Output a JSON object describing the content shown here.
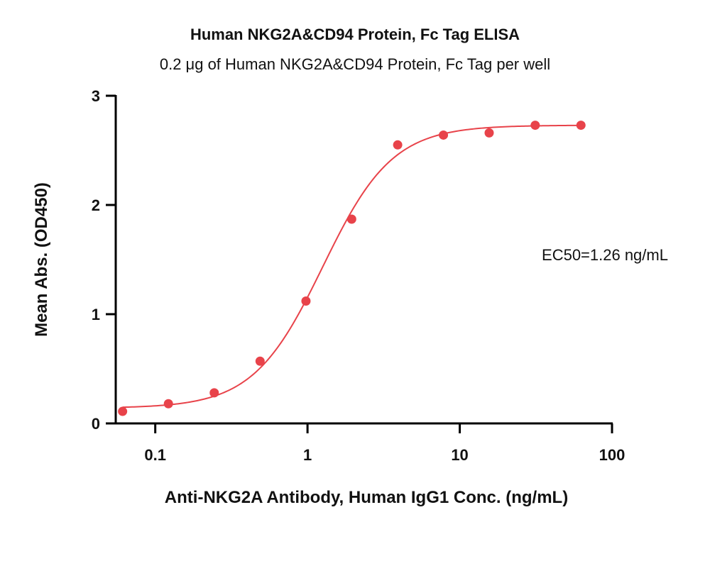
{
  "chart_data": {
    "type": "scatter",
    "title": "Human NKG2A&CD94 Protein, Fc Tag ELISA",
    "subtitle": "0.2 μg of Human NKG2A&CD94 Protein, Fc Tag per well",
    "xlabel": "Anti-NKG2A Antibody, Human IgG1 Conc. (ng/mL)",
    "ylabel": "Mean Abs. (OD450)",
    "xscale": "log",
    "xlim": [
      0.055,
      100
    ],
    "ylim": [
      0,
      3
    ],
    "xticks": [
      {
        "value": 0.1,
        "label": "0.1"
      },
      {
        "value": 1,
        "label": "1"
      },
      {
        "value": 10,
        "label": "10"
      },
      {
        "value": 100,
        "label": "100"
      }
    ],
    "yticks": [
      {
        "value": 0,
        "label": "0"
      },
      {
        "value": 1,
        "label": "1"
      },
      {
        "value": 2,
        "label": "2"
      },
      {
        "value": 3,
        "label": "3"
      }
    ],
    "series": [
      {
        "x": [
          0.061,
          0.122,
          0.244,
          0.488,
          0.977,
          1.95,
          3.91,
          7.81,
          15.6,
          31.3,
          62.5
        ],
        "y": [
          0.11,
          0.18,
          0.28,
          0.57,
          1.12,
          1.87,
          2.55,
          2.64,
          2.66,
          2.73,
          2.73
        ],
        "color": "#e8434a"
      }
    ],
    "fit_curve": {
      "type": "4PL",
      "bottom": 0.14,
      "top": 2.73,
      "ec50": 1.26,
      "hill": 1.9,
      "color": "#e8434a"
    },
    "annotation": "EC50=1.26 ng/mL",
    "grid": false
  }
}
